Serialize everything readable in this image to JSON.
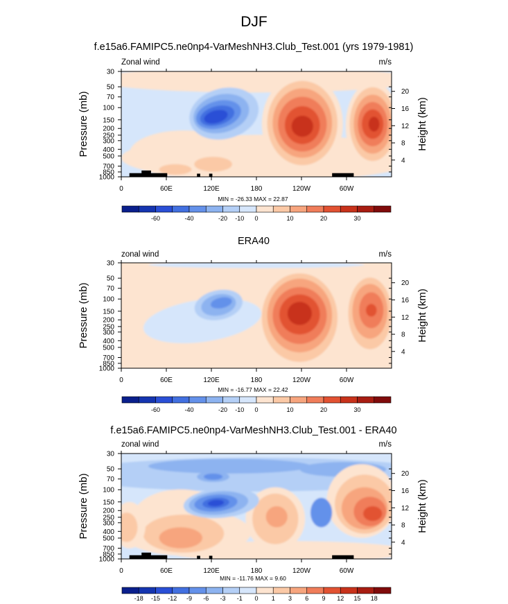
{
  "page": {
    "title": "DJF"
  },
  "colors": {
    "scale": [
      "#0a1f8c",
      "#1535b0",
      "#2a4fd6",
      "#4270e0",
      "#6491ea",
      "#8db3f0",
      "#b4cff6",
      "#d6e6fb",
      "#fde4d0",
      "#fbc9a6",
      "#f7a57e",
      "#f07d5a",
      "#e25232",
      "#c8321b",
      "#a81d12",
      "#800b0b"
    ]
  },
  "chart_data": [
    {
      "type": "contour",
      "title": "f.e15a6.FAMIPC5.ne0np4-VarMeshNH3.Club_Test.001 (yrs 1979-1981)",
      "left_label": "Zonal wind",
      "right_label": "m/s",
      "ylabel": "Pressure (mb)",
      "ylabel_right": "Height (km)",
      "x_ticks": [
        "0",
        "60E",
        "120E",
        "180",
        "120W",
        "60W"
      ],
      "y_ticks": [
        "30",
        "50",
        "70",
        "100",
        "150",
        "200",
        "250",
        "300",
        "400",
        "500",
        "700",
        "850",
        "1000"
      ],
      "height_ticks": [
        "20",
        "16",
        "12",
        "8",
        "4"
      ],
      "stats": "MIN = -26.33  MAX =  22.87",
      "colorbar_labels": [
        "-60",
        "-40",
        "-20",
        "-10",
        "0",
        "10",
        "20",
        "30"
      ],
      "features": [
        {
          "lon": 135,
          "p": 150,
          "value": -26
        },
        {
          "lon": 250,
          "p": 200,
          "value": 23
        },
        {
          "lon": 335,
          "p": 200,
          "value": 20
        }
      ]
    },
    {
      "type": "contour",
      "title": "ERA40",
      "left_label": "zonal wind",
      "right_label": "m/s",
      "ylabel": "Pressure (mb)",
      "ylabel_right": "Height (km)",
      "x_ticks": [
        "0",
        "60E",
        "120E",
        "180",
        "120W",
        "60W"
      ],
      "y_ticks": [
        "30",
        "50",
        "70",
        "100",
        "150",
        "200",
        "250",
        "300",
        "400",
        "500",
        "700",
        "850",
        "1000"
      ],
      "height_ticks": [
        "20",
        "16",
        "12",
        "8",
        "4"
      ],
      "stats": "MIN = -16.77  MAX =  22.42",
      "colorbar_labels": [
        "-60",
        "-40",
        "-20",
        "-10",
        "0",
        "10",
        "20",
        "30"
      ],
      "features": [
        {
          "lon": 135,
          "p": 100,
          "value": -17
        },
        {
          "lon": 240,
          "p": 150,
          "value": 22
        },
        {
          "lon": 335,
          "p": 150,
          "value": 15
        }
      ]
    },
    {
      "type": "contour",
      "title": "f.e15a6.FAMIPC5.ne0np4-VarMeshNH3.Club_Test.001 - ERA40",
      "left_label": "zonal wind",
      "right_label": "m/s",
      "ylabel": "Pressure (mb)",
      "ylabel_right": "Height (km)",
      "x_ticks": [
        "0",
        "60E",
        "120E",
        "180",
        "120W",
        "60W"
      ],
      "y_ticks": [
        "30",
        "50",
        "70",
        "100",
        "150",
        "200",
        "250",
        "300",
        "400",
        "500",
        "700",
        "850",
        "1000"
      ],
      "height_ticks": [
        "20",
        "16",
        "12",
        "8",
        "4"
      ],
      "stats": "MIN = -11.76  MAX =   9.60",
      "colorbar_labels": [
        "-18",
        "-15",
        "-12",
        "-9",
        "-6",
        "-3",
        "-1",
        "0",
        "1",
        "3",
        "6",
        "9",
        "12",
        "15",
        "18"
      ],
      "features": [
        {
          "lon": 135,
          "p": 150,
          "value": -12
        },
        {
          "lon": 240,
          "p": 250,
          "value": 7
        },
        {
          "lon": 345,
          "p": 250,
          "value": 9
        }
      ]
    }
  ]
}
